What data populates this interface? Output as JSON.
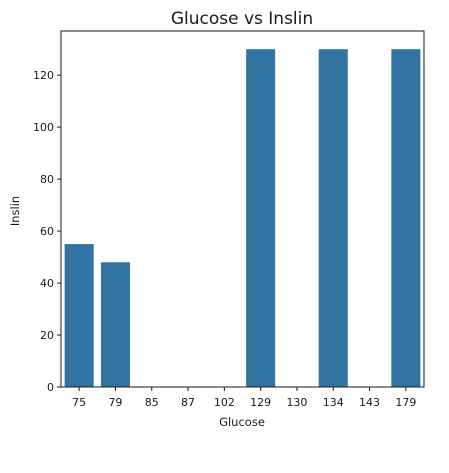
{
  "chart_data": {
    "type": "bar",
    "title": "Glucose vs Inslin",
    "xlabel": "Glucose",
    "ylabel": "Inslin",
    "categories": [
      "75",
      "79",
      "85",
      "87",
      "102",
      "129",
      "130",
      "134",
      "143",
      "179"
    ],
    "values": [
      55,
      48,
      0,
      0,
      0,
      130,
      0,
      130,
      0,
      130
    ],
    "ylim": [
      0,
      137
    ],
    "yticks": [
      0,
      20,
      40,
      60,
      80,
      100,
      120
    ],
    "grid": false,
    "legend": "none",
    "bar_color": "#3274a1"
  }
}
